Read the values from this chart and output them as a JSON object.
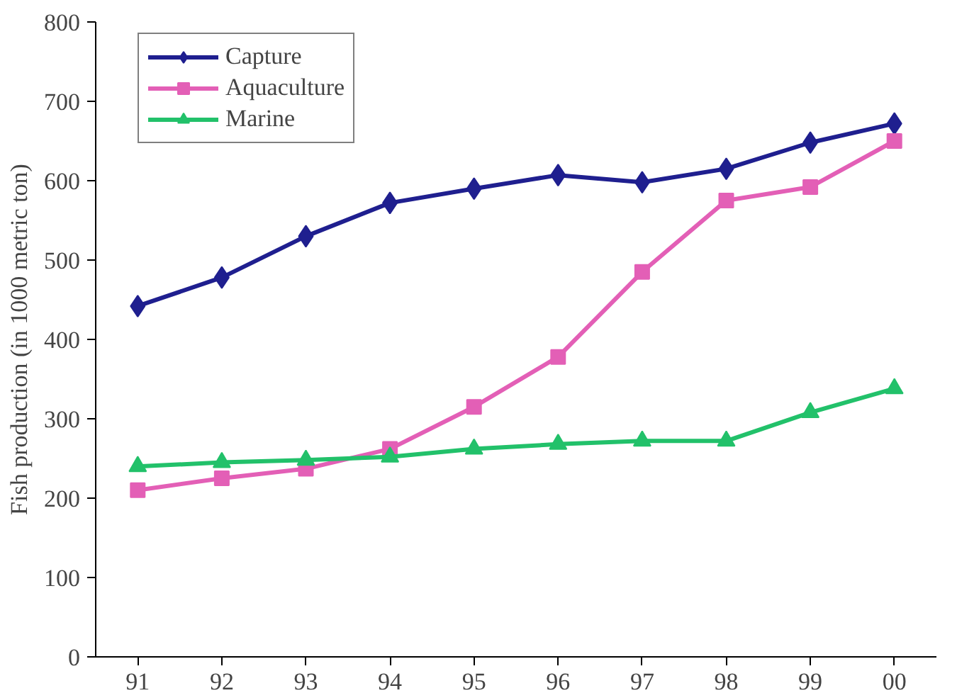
{
  "chart_data": {
    "type": "line",
    "ylabel": "Fish production (in 1000 metric ton)",
    "categories": [
      "91",
      "92",
      "93",
      "94",
      "95",
      "96",
      "97",
      "98",
      "99",
      "00"
    ],
    "ylim": [
      0,
      800
    ],
    "yticks": [
      0,
      100,
      200,
      300,
      400,
      500,
      600,
      700,
      800
    ],
    "grid": false,
    "legend": "top left",
    "series": [
      {
        "name": "Capture",
        "color": "#1f1f8f",
        "marker": "diamond",
        "values": [
          442,
          478,
          530,
          572,
          590,
          607,
          598,
          615,
          648,
          672
        ]
      },
      {
        "name": "Aquaculture",
        "color": "#e35fb6",
        "marker": "square",
        "values": [
          210,
          225,
          237,
          262,
          315,
          378,
          485,
          575,
          592,
          650
        ]
      },
      {
        "name": "Marine",
        "color": "#22c16a",
        "marker": "triangle",
        "values": [
          240,
          245,
          248,
          252,
          262,
          268,
          272,
          272,
          308,
          338
        ]
      }
    ]
  }
}
